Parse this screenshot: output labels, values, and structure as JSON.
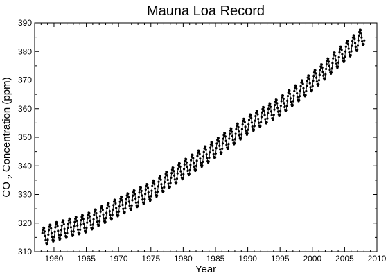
{
  "chart_data": {
    "type": "line",
    "title": "Mauna Loa Record",
    "xlabel": "Year",
    "ylabel": {
      "prefix": "CO",
      "subscript": "2",
      "suffix": " Concentration (ppm)"
    },
    "xlim": [
      1957,
      2010
    ],
    "ylim": [
      310,
      390
    ],
    "x_ticks": [
      1960,
      1965,
      1970,
      1975,
      1980,
      1985,
      1990,
      1995,
      2000,
      2005,
      2010
    ],
    "y_ticks": [
      310,
      320,
      330,
      340,
      350,
      360,
      370,
      380,
      390
    ],
    "grid": false,
    "legend": false,
    "series": [
      {
        "marker": "filled-circle",
        "color": "#000000",
        "monthly_values": {
          "start": "1958-03",
          "end": "2008-01",
          "trend_points": [
            {
              "year": 1958.2,
              "value": 315.0
            },
            {
              "year": 1960,
              "value": 316.9
            },
            {
              "year": 1965,
              "value": 320.0
            },
            {
              "year": 1970,
              "value": 325.7
            },
            {
              "year": 1975,
              "value": 331.1
            },
            {
              "year": 1980,
              "value": 338.7
            },
            {
              "year": 1985,
              "value": 346.0
            },
            {
              "year": 1990,
              "value": 354.3
            },
            {
              "year": 1995,
              "value": 360.8
            },
            {
              "year": 2000,
              "value": 369.5
            },
            {
              "year": 2005,
              "value": 379.8
            },
            {
              "year": 2008,
              "value": 385.6
            }
          ],
          "seasonal_amplitude": 3.2,
          "seasonal_peak_month": 5
        }
      }
    ]
  }
}
